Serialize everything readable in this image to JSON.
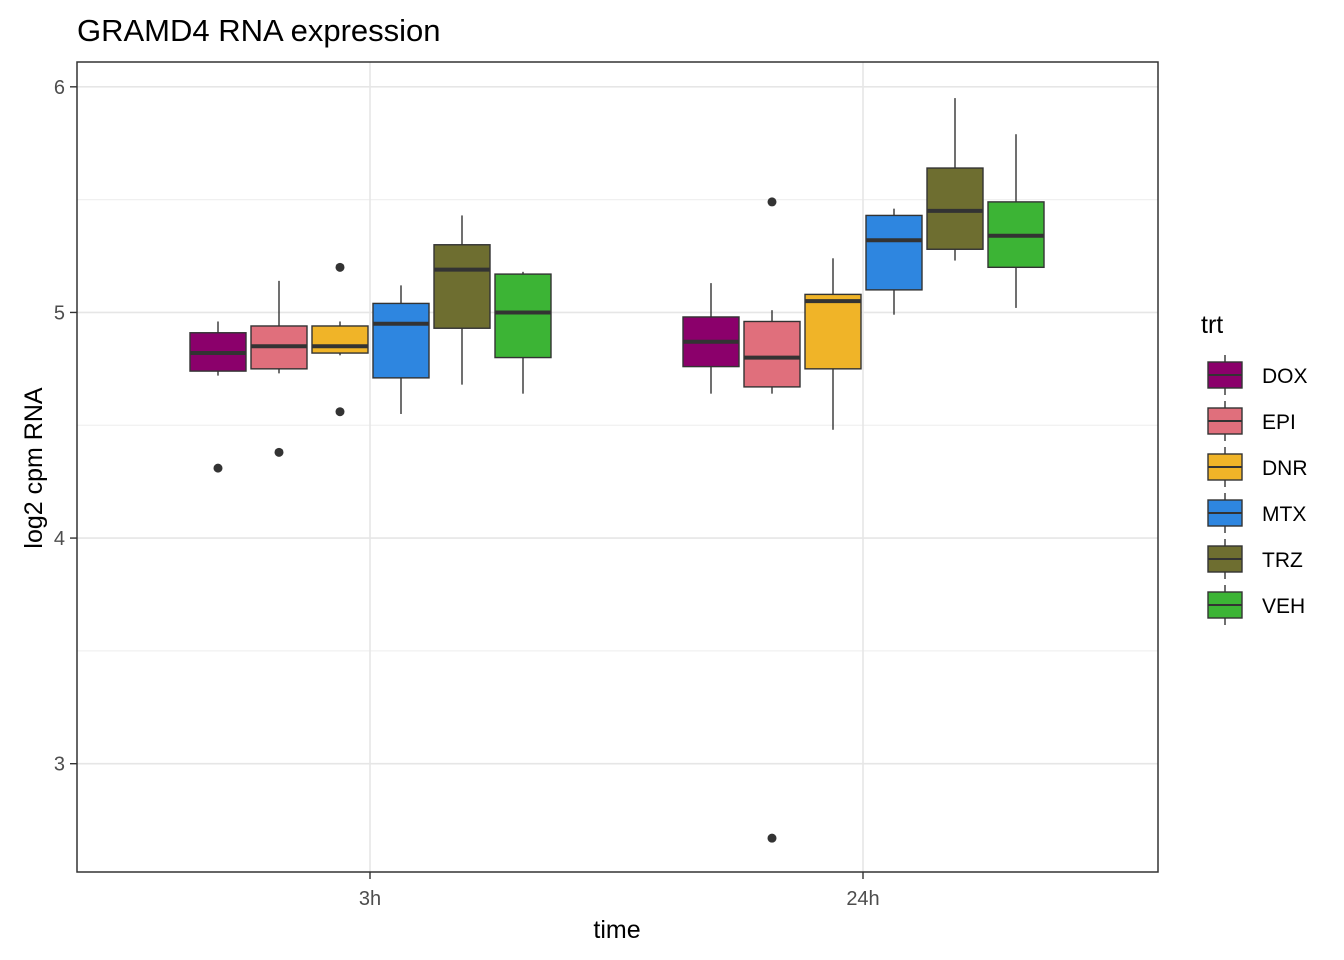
{
  "chart_data": {
    "type": "boxplot",
    "title": "GRAMD4  RNA expression",
    "xlabel": "time",
    "ylabel": "log2 cpm RNA",
    "categories": [
      "3h",
      "24h"
    ],
    "y_ticks": [
      3,
      4,
      5,
      6
    ],
    "ylim": [
      2.52,
      6.11
    ],
    "grid": true,
    "legend": {
      "title": "trt",
      "position": "right"
    },
    "colors": {
      "DOX": "#8b006b",
      "EPI": "#e06f7c",
      "DNR": "#f0b428",
      "MTX": "#2e86e0",
      "TRZ": "#6e6e30",
      "VEH": "#3cb435"
    },
    "series": [
      {
        "name": "DOX",
        "boxes": [
          {
            "time": "3h",
            "lower": 4.72,
            "q1": 4.74,
            "median": 4.82,
            "q3": 4.91,
            "upper": 4.96,
            "outliers": [
              4.31
            ]
          },
          {
            "time": "24h",
            "lower": 4.64,
            "q1": 4.76,
            "median": 4.87,
            "q3": 4.98,
            "upper": 5.13,
            "outliers": []
          }
        ]
      },
      {
        "name": "EPI",
        "boxes": [
          {
            "time": "3h",
            "lower": 4.73,
            "q1": 4.75,
            "median": 4.85,
            "q3": 4.94,
            "upper": 5.14,
            "outliers": [
              4.38
            ]
          },
          {
            "time": "24h",
            "lower": 4.64,
            "q1": 4.67,
            "median": 4.8,
            "q3": 4.96,
            "upper": 5.01,
            "outliers": [
              5.49,
              2.67
            ]
          }
        ]
      },
      {
        "name": "DNR",
        "boxes": [
          {
            "time": "3h",
            "lower": 4.81,
            "q1": 4.82,
            "median": 4.85,
            "q3": 4.94,
            "upper": 4.96,
            "outliers": [
              5.2,
              4.56
            ]
          },
          {
            "time": "24h",
            "lower": 4.48,
            "q1": 4.75,
            "median": 5.05,
            "q3": 5.08,
            "upper": 5.24,
            "outliers": []
          }
        ]
      },
      {
        "name": "MTX",
        "boxes": [
          {
            "time": "3h",
            "lower": 4.55,
            "q1": 4.71,
            "median": 4.95,
            "q3": 5.04,
            "upper": 5.12,
            "outliers": []
          },
          {
            "time": "24h",
            "lower": 4.99,
            "q1": 5.1,
            "median": 5.32,
            "q3": 5.43,
            "upper": 5.46,
            "outliers": []
          }
        ]
      },
      {
        "name": "TRZ",
        "boxes": [
          {
            "time": "3h",
            "lower": 4.68,
            "q1": 4.93,
            "median": 5.19,
            "q3": 5.3,
            "upper": 5.43,
            "outliers": []
          },
          {
            "time": "24h",
            "lower": 5.23,
            "q1": 5.28,
            "median": 5.45,
            "q3": 5.64,
            "upper": 5.95,
            "outliers": []
          }
        ]
      },
      {
        "name": "VEH",
        "boxes": [
          {
            "time": "3h",
            "lower": 4.64,
            "q1": 4.8,
            "median": 5.0,
            "q3": 5.17,
            "upper": 5.18,
            "outliers": []
          },
          {
            "time": "24h",
            "lower": 5.02,
            "q1": 5.2,
            "median": 5.34,
            "q3": 5.49,
            "upper": 5.79,
            "outliers": []
          }
        ]
      }
    ]
  }
}
